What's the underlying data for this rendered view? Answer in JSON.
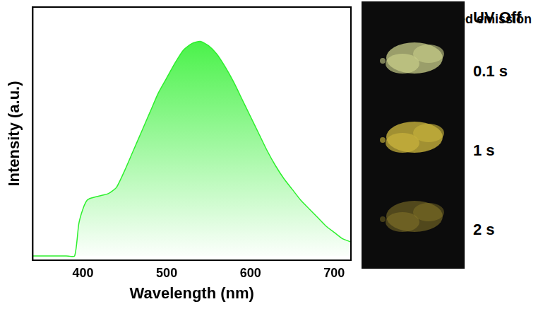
{
  "chart_data": {
    "type": "line",
    "x_label": "Wavelength (nm)",
    "y_label": "Intensity (a.u.)",
    "x": [
      340,
      380,
      390,
      395,
      400,
      405,
      410,
      420,
      430,
      440,
      450,
      460,
      470,
      480,
      490,
      500,
      510,
      520,
      530,
      540,
      550,
      560,
      570,
      580,
      590,
      600,
      610,
      620,
      630,
      640,
      650,
      660,
      670,
      680,
      690,
      700,
      710,
      720
    ],
    "series": [
      {
        "name": "Delayed emission",
        "color": "#2ef02e",
        "values": [
          0,
          0,
          0,
          0.15,
          0.22,
          0.26,
          0.27,
          0.28,
          0.29,
          0.32,
          0.4,
          0.49,
          0.58,
          0.67,
          0.76,
          0.83,
          0.9,
          0.96,
          0.99,
          1.0,
          0.98,
          0.94,
          0.88,
          0.81,
          0.73,
          0.65,
          0.57,
          0.49,
          0.42,
          0.36,
          0.31,
          0.26,
          0.22,
          0.18,
          0.14,
          0.11,
          0.08,
          0.065
        ]
      }
    ],
    "xlim": [
      340,
      720
    ],
    "xticks": [
      400,
      500,
      600,
      700
    ],
    "ylim": [
      -0.02,
      1.16
    ],
    "tick_labels": "x",
    "grid": false,
    "legend": "upper right"
  },
  "photos": {
    "title": "UV Off",
    "labels": [
      "0.1 s",
      "1 s",
      "2 s"
    ]
  }
}
